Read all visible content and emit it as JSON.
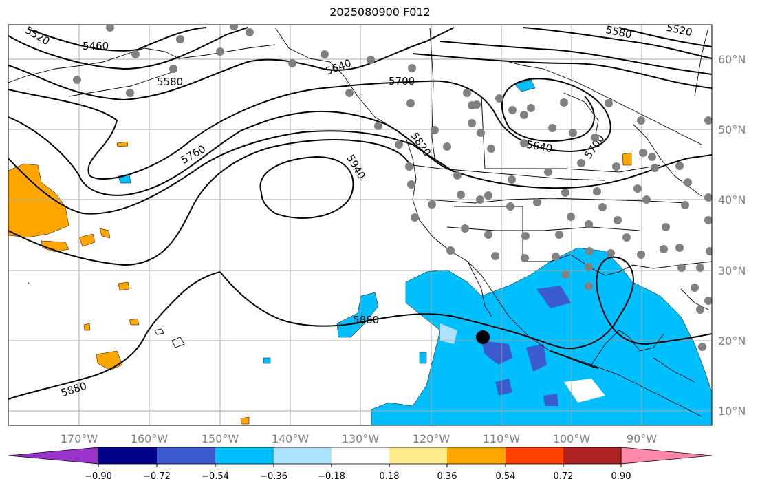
{
  "title": "2025080900 F012",
  "lon_ticks": [
    "170°W",
    "160°W",
    "150°W",
    "140°W",
    "130°W",
    "120°W",
    "110°W",
    "100°W",
    "90°W"
  ],
  "lat_ticks": [
    "60°N",
    "50°N",
    "40°N",
    "30°N",
    "20°N",
    "10°N"
  ],
  "contour_labels": [
    "5460",
    "5520",
    "5580",
    "5640",
    "5700",
    "5760",
    "5820",
    "5880",
    "5940",
    "5580",
    "5520",
    "5640",
    "5700",
    "5880"
  ],
  "colorbar": {
    "ticks": [
      "−0.90",
      "−0.72",
      "−0.54",
      "−0.36",
      "−0.18",
      "0.18",
      "0.36",
      "0.54",
      "0.72",
      "0.90"
    ],
    "colors": [
      "#9933cc",
      "#00008b",
      "#3a5bd0",
      "#00bfff",
      "#aee2ff",
      "#ffffff",
      "#ffeb8a",
      "#ffa500",
      "#ff4000",
      "#b22222",
      "#ff88aa"
    ]
  },
  "marker_color": "#000000",
  "station_color": "#808080"
}
